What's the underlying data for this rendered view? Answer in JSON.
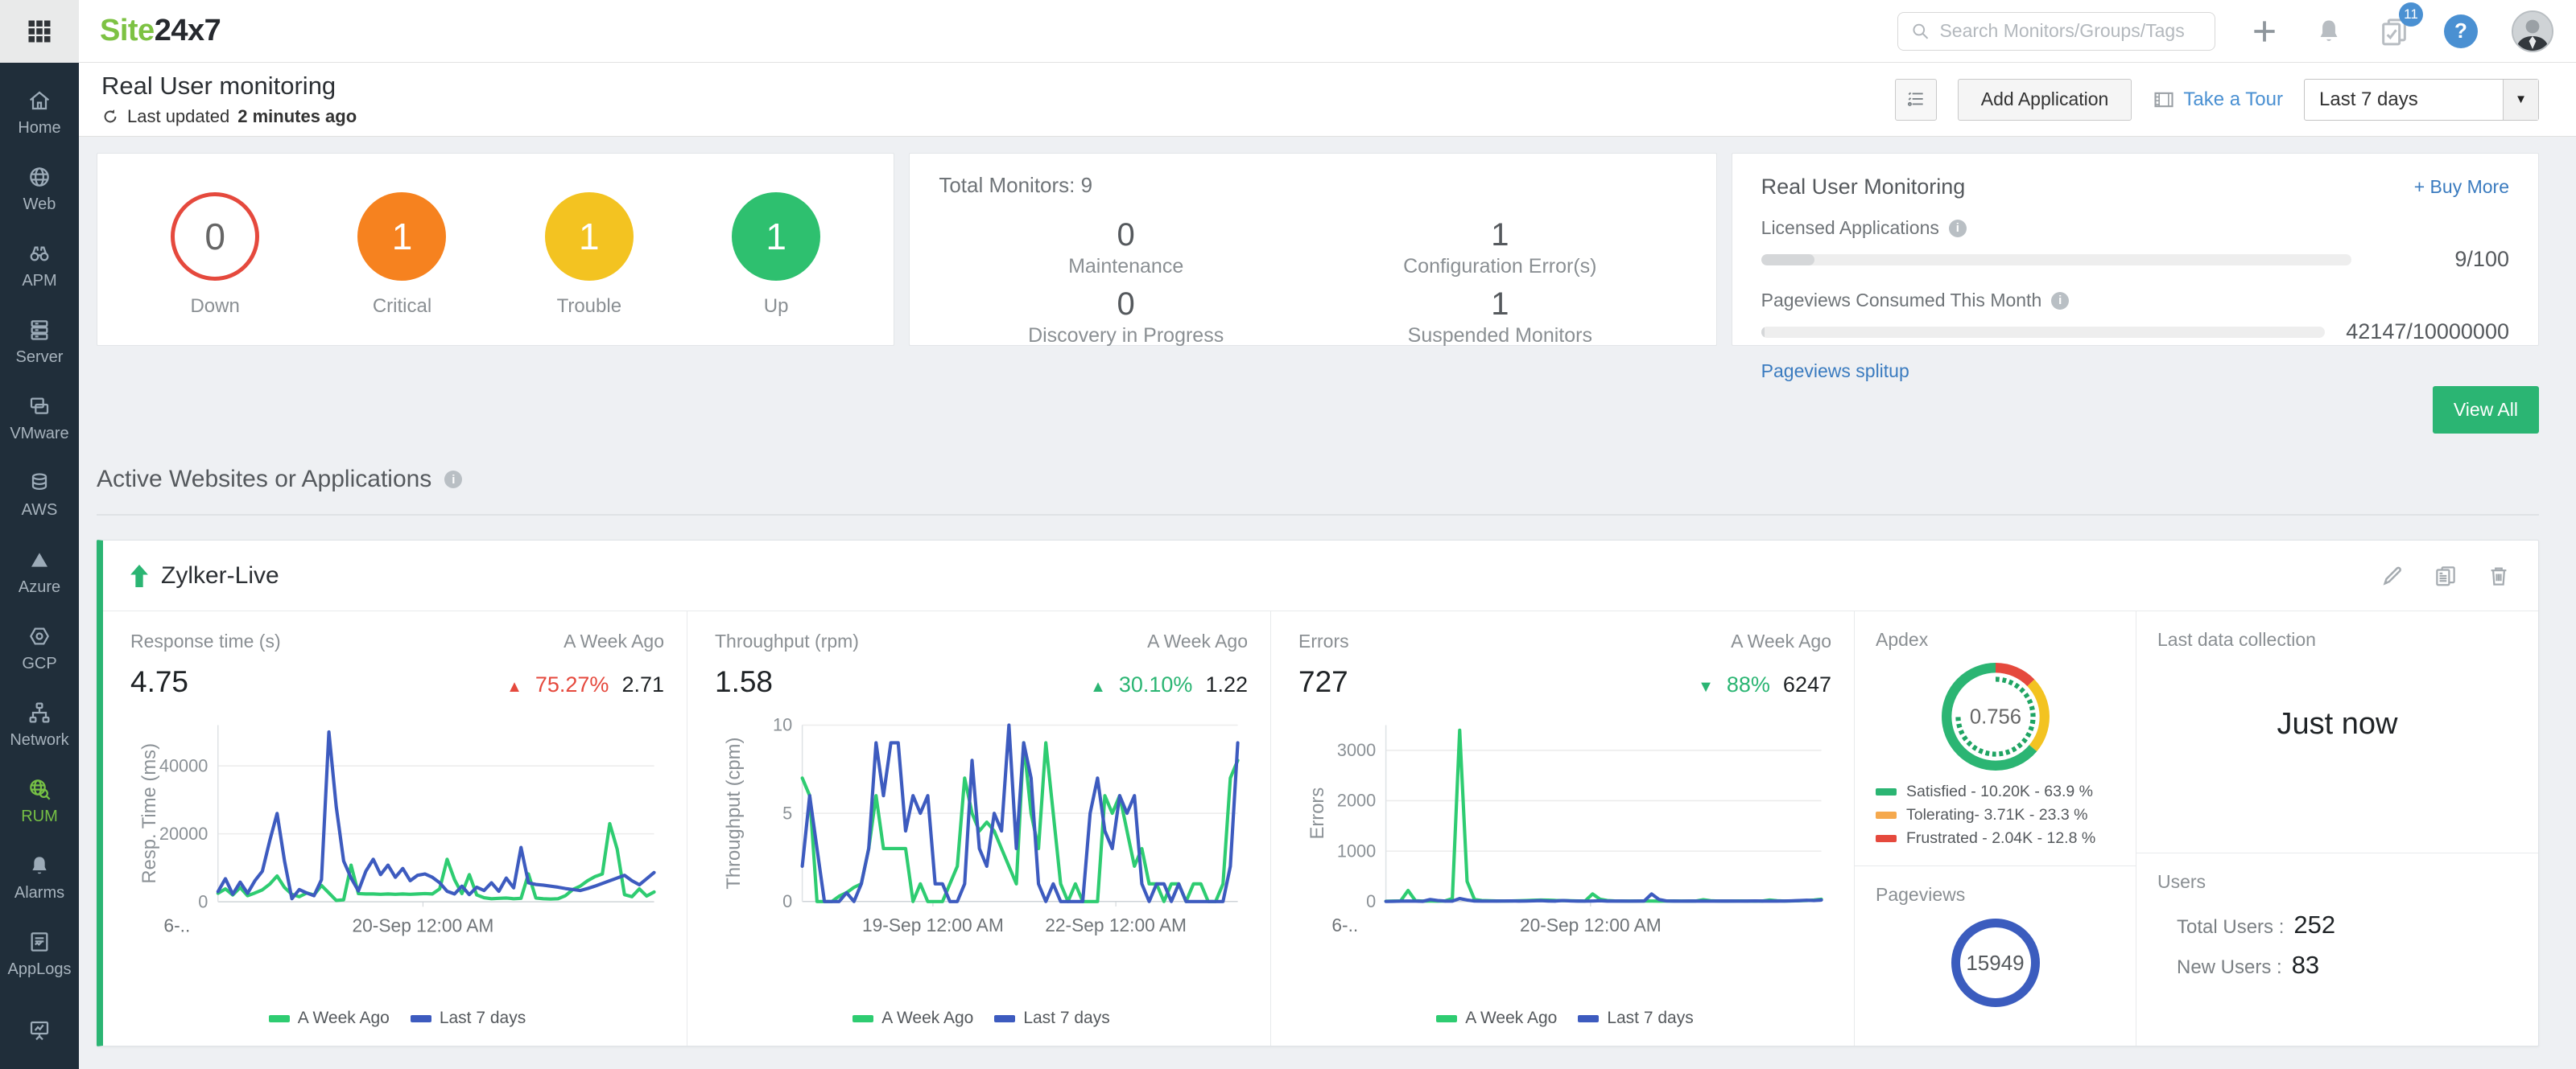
{
  "topbar": {
    "logo_site": "Site",
    "logo_24x7": "24x7",
    "search_placeholder": "Search Monitors/Groups/Tags",
    "notification_count": "11"
  },
  "sidebar": {
    "items": [
      {
        "label": "Home"
      },
      {
        "label": "Web"
      },
      {
        "label": "APM"
      },
      {
        "label": "Server"
      },
      {
        "label": "VMware"
      },
      {
        "label": "AWS"
      },
      {
        "label": "Azure"
      },
      {
        "label": "GCP"
      },
      {
        "label": "Network"
      },
      {
        "label": "RUM",
        "active": true
      },
      {
        "label": "Alarms"
      },
      {
        "label": "AppLogs"
      }
    ]
  },
  "header": {
    "title": "Real User monitoring",
    "last_updated_prefix": "Last updated",
    "last_updated_value": "2 minutes ago",
    "add_application": "Add Application",
    "take_a_tour": "Take a Tour",
    "time_range": "Last 7 days"
  },
  "status_summary": {
    "circles": [
      {
        "label": "Down",
        "value": "0",
        "color": "#e5493d",
        "filled": false
      },
      {
        "label": "Critical",
        "value": "1",
        "color": "#f6821f",
        "filled": true
      },
      {
        "label": "Trouble",
        "value": "1",
        "color": "#f3c321",
        "filled": true
      },
      {
        "label": "Up",
        "value": "1",
        "color": "#2ec06f",
        "filled": true
      }
    ]
  },
  "monitors": {
    "title": "Total Monitors: 9",
    "stats": [
      {
        "value": "0",
        "label": "Maintenance"
      },
      {
        "value": "1",
        "label": "Configuration Error(s)"
      },
      {
        "value": "0",
        "label": "Discovery in Progress"
      },
      {
        "value": "1",
        "label": "Suspended Monitors"
      }
    ]
  },
  "license": {
    "title": "Real User Monitoring",
    "buy_more": "+ Buy More",
    "rows": [
      {
        "label": "Licensed Applications",
        "value": "9/100",
        "pct": 9
      },
      {
        "label": "Pageviews Consumed This Month",
        "value": "42147/10000000",
        "pct": 0.6
      }
    ],
    "splitup_link": "Pageviews splitup"
  },
  "view_all": "View All",
  "section": {
    "title": "Active Websites or Applications"
  },
  "app": {
    "name": "Zylker-Live"
  },
  "metrics": [
    {
      "label": "Response time (s)",
      "week_ago_label": "A Week Ago",
      "current": "4.75",
      "change": "75.27%",
      "direction": "up",
      "change_color": "#e5493d",
      "previous": "2.71"
    },
    {
      "label": "Throughput (rpm)",
      "week_ago_label": "A Week Ago",
      "current": "1.58",
      "change": "30.10%",
      "direction": "up",
      "change_color": "#2bb573",
      "previous": "1.22"
    },
    {
      "label": "Errors",
      "week_ago_label": "A Week Ago",
      "current": "727",
      "change": "88%",
      "direction": "down",
      "change_color": "#2bb573",
      "previous": "6247"
    }
  ],
  "legend": {
    "week_ago": "A Week Ago",
    "last7": "Last 7 days",
    "week_ago_color": "#2ecc71",
    "last7_color": "#3d5bbf"
  },
  "apdex": {
    "title": "Apdex",
    "score": "0.756",
    "segments": [
      {
        "name": "Frustrated",
        "pct": 12.8,
        "color": "#e5493d"
      },
      {
        "name": "Tolerating",
        "pct": 23.3,
        "color": "#f3c321"
      },
      {
        "name": "Satisfied",
        "pct": 63.9,
        "color": "#2bb573"
      }
    ],
    "legend": [
      {
        "label": "Satisfied  - 10.20K - 63.9 %",
        "color": "#2bb573"
      },
      {
        "label": "Tolerating- 3.71K - 23.3 %",
        "color": "#f5a94e"
      },
      {
        "label": "Frustrated - 2.04K - 12.8 %",
        "color": "#e5493d"
      }
    ]
  },
  "last_data_collection": {
    "title": "Last data collection",
    "value": "Just now"
  },
  "pageviews": {
    "title": "Pageviews",
    "value": "15949"
  },
  "users": {
    "title": "Users",
    "total_label": "Total Users :",
    "total_value": "252",
    "new_label": "New Users :",
    "new_value": "83"
  },
  "chart_data": [
    {
      "id": "response",
      "type": "line",
      "title": "Response time",
      "ylabel": "Resp. Time (ms)",
      "yticks": [
        0,
        20000,
        40000
      ],
      "ylim": [
        0,
        52000
      ],
      "xticks": [
        {
          "pos": 0.02,
          "label": "6-.."
        },
        {
          "pos": 0.47,
          "label": "20-Sep 12:00 AM"
        }
      ],
      "legend_position": "bottom",
      "series": [
        {
          "name": "A Week Ago",
          "color": "#2ecc71",
          "values": [
            2500,
            3800,
            2000,
            4200,
            1800,
            2600,
            3500,
            5200,
            7600,
            4200,
            2200,
            1500,
            2600,
            2000,
            4800,
            2600,
            400,
            600,
            10800,
            2400,
            2300,
            2300,
            2200,
            2300,
            2200,
            2300,
            2200,
            2300,
            2400,
            2300,
            3800,
            12500,
            6500,
            2400,
            8000,
            2000,
            1200,
            900,
            1000,
            1100,
            900,
            1000,
            8200,
            1100,
            900,
            800,
            900,
            1800,
            3600,
            4600,
            6200,
            7400,
            8200,
            23000,
            15500,
            2100,
            1500,
            3800,
            1700,
            2900
          ]
        },
        {
          "name": "Last 7 days",
          "color": "#3d5bbf",
          "values": [
            3000,
            6800,
            2200,
            5800,
            2500,
            6200,
            9000,
            18000,
            26000,
            12000,
            900,
            3600,
            2600,
            1800,
            6500,
            50000,
            28000,
            12000,
            7000,
            3200,
            9000,
            12500,
            8000,
            10800,
            7200,
            9800,
            6200,
            7800,
            8200,
            7200,
            5600,
            3100,
            2300,
            4600,
            2100,
            4300,
            3300,
            5600,
            3100,
            7000,
            4100,
            16000,
            5600,
            5100,
            4900,
            4600,
            4300,
            3900,
            3600,
            3300,
            3900,
            4600,
            5400,
            6200,
            7000,
            7800,
            6200,
            5000,
            6800,
            8600
          ]
        }
      ]
    },
    {
      "id": "throughput",
      "type": "line",
      "title": "Throughput",
      "ylabel": "Throughput (cpm)",
      "yticks": [
        0,
        5,
        10
      ],
      "ylim": [
        0,
        10
      ],
      "xticks": [
        {
          "pos": 0.3,
          "label": "19-Sep 12:00 AM"
        },
        {
          "pos": 0.72,
          "label": "22-Sep 12:00 AM"
        }
      ],
      "legend_position": "bottom",
      "series": [
        {
          "name": "A Week Ago",
          "color": "#2ecc71",
          "values": [
            7,
            6,
            0,
            0,
            0,
            0.3,
            0.5,
            0.8,
            1,
            3,
            6,
            3,
            3,
            3,
            3,
            0,
            1,
            0,
            0,
            0,
            1,
            2,
            7,
            5,
            4,
            4.5,
            4,
            3,
            2,
            1,
            9,
            5,
            3,
            9,
            5,
            1,
            0,
            1,
            0,
            0,
            0,
            6,
            5,
            6,
            4,
            2,
            3,
            1,
            1,
            0,
            1,
            1,
            0,
            1,
            1,
            0,
            0,
            1,
            7,
            8
          ]
        },
        {
          "name": "Last 7 days",
          "color": "#3d5bbf",
          "values": [
            2,
            6,
            3,
            0,
            0,
            0,
            0.5,
            0,
            1,
            3,
            9,
            6,
            9,
            9,
            4,
            6,
            5,
            6,
            1,
            1,
            0,
            0,
            1,
            8,
            3,
            2,
            5,
            4,
            10,
            3,
            9,
            7,
            1,
            0,
            1,
            0,
            0,
            0,
            0,
            5,
            7,
            4,
            3,
            6,
            5,
            6,
            1,
            0,
            1,
            1,
            0,
            1,
            0,
            0,
            0,
            0,
            0,
            0,
            2,
            9
          ]
        }
      ]
    },
    {
      "id": "errors",
      "type": "line",
      "title": "Errors",
      "ylabel": "Errors",
      "yticks": [
        0,
        1000,
        2000,
        3000
      ],
      "ylim": [
        0,
        3500
      ],
      "xticks": [
        {
          "pos": 0.02,
          "label": "6-.."
        },
        {
          "pos": 0.47,
          "label": "20-Sep 12:00 AM"
        }
      ],
      "legend_position": "bottom",
      "series": [
        {
          "name": "A Week Ago",
          "color": "#2ecc71",
          "values": [
            5,
            8,
            12,
            220,
            15,
            8,
            10,
            6,
            10,
            60,
            3400,
            400,
            40,
            20,
            15,
            12,
            10,
            12,
            15,
            20,
            25,
            30,
            28,
            22,
            18,
            15,
            12,
            10,
            150,
            45,
            20,
            12,
            10,
            8,
            10,
            12,
            10,
            8,
            10,
            12,
            10,
            8,
            10,
            35,
            15,
            10,
            8,
            10,
            12,
            10,
            8,
            10,
            30,
            15,
            10,
            12,
            15,
            20,
            30,
            45
          ]
        },
        {
          "name": "Last 7 days",
          "color": "#3d5bbf",
          "values": [
            2,
            4,
            6,
            10,
            6,
            4,
            40,
            20,
            8,
            6,
            60,
            30,
            10,
            8,
            6,
            8,
            10,
            12,
            8,
            10,
            14,
            18,
            10,
            8,
            20,
            12,
            8,
            6,
            10,
            15,
            8,
            10,
            8,
            6,
            8,
            10,
            150,
            40,
            12,
            8,
            6,
            8,
            10,
            8,
            6,
            8,
            10,
            8,
            6,
            8,
            12,
            8,
            6,
            8,
            10,
            14,
            18,
            25,
            20,
            30
          ]
        }
      ]
    }
  ]
}
